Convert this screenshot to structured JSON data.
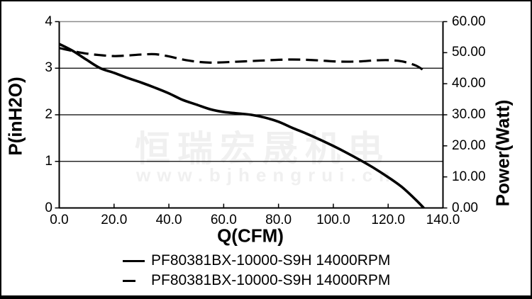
{
  "watermark": {
    "brand": "恒瑞宏晟机电",
    "url": "www.bjhengrui.cn"
  },
  "colors": {
    "curve": "#000000",
    "grid": "#000000",
    "plot_border": "#000000",
    "plot_border_top": "#8c8c8c",
    "frame": "#000000",
    "watermark": "#f0f0f0",
    "background": "#ffffff",
    "text": "#000000"
  },
  "chart_data": {
    "type": "line",
    "title": "",
    "grid": "horizontal gridlines at left-axis values 1, 2, 3",
    "legend_position": "bottom-center",
    "x_axis": {
      "label": "Q(CFM)",
      "min": 0,
      "max": 140,
      "tick_values": [
        0,
        20,
        40,
        60,
        80,
        100,
        120,
        140
      ],
      "tick_labels": [
        "0.0",
        "20.0",
        "40.0",
        "60.0",
        "80.0",
        "100.0",
        "120.0",
        "140.0"
      ]
    },
    "y_axis_left": {
      "label": "P(inH2O)",
      "min": 0,
      "max": 4,
      "tick_values": [
        4,
        3,
        2,
        1,
        0
      ],
      "tick_labels": [
        "4",
        "3",
        "2",
        "1",
        "0"
      ],
      "gridline_values": [
        1,
        2,
        3
      ]
    },
    "y_axis_right": {
      "label": "Power(Watt)",
      "min": 0,
      "max": 60,
      "tick_values": [
        60,
        50,
        40,
        30,
        20,
        10,
        0
      ],
      "tick_labels": [
        "60.00",
        "50.00",
        "40.00",
        "30.00",
        "20.00",
        "10.00",
        "0.00"
      ]
    },
    "series": [
      {
        "name": "PF80381BX-10000-S9H 14000RPM",
        "quantity": "static pressure P(inH2O)",
        "axis": "left",
        "line_style": "solid",
        "color": "#000000",
        "x": [
          0,
          5,
          10,
          15,
          20,
          25,
          30,
          35,
          40,
          45,
          50,
          55,
          60,
          65,
          70,
          75,
          80,
          85,
          90,
          95,
          100,
          105,
          110,
          115,
          120,
          125,
          130,
          133
        ],
        "y": [
          3.52,
          3.37,
          3.18,
          3.0,
          2.9,
          2.79,
          2.69,
          2.58,
          2.46,
          2.32,
          2.22,
          2.12,
          2.06,
          2.03,
          2.0,
          1.94,
          1.85,
          1.72,
          1.6,
          1.47,
          1.33,
          1.18,
          1.02,
          0.85,
          0.66,
          0.45,
          0.18,
          0.0
        ]
      },
      {
        "name": "PF80381BX-10000-S9H 14000RPM",
        "quantity": "power consumption Power(Watt)",
        "axis": "right",
        "line_style": "dashed",
        "color": "#000000",
        "x": [
          0,
          5,
          10,
          15,
          20,
          25,
          30,
          35,
          40,
          45,
          50,
          55,
          60,
          65,
          70,
          75,
          80,
          85,
          90,
          95,
          100,
          105,
          110,
          115,
          120,
          125,
          130,
          133
        ],
        "y": [
          51.5,
          50.5,
          49.7,
          49.2,
          48.9,
          49.1,
          49.4,
          49.5,
          48.8,
          47.8,
          47.1,
          46.8,
          46.9,
          47.1,
          47.3,
          47.5,
          47.7,
          47.8,
          47.7,
          47.5,
          47.2,
          47.1,
          47.2,
          47.5,
          47.6,
          47.2,
          45.9,
          44.3
        ]
      }
    ]
  }
}
